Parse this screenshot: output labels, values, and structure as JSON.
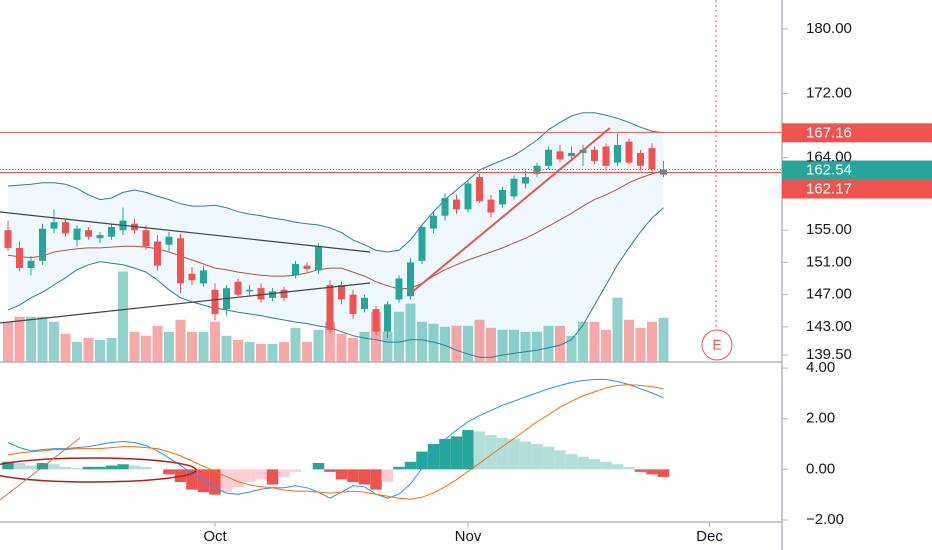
{
  "chart_data": [
    {
      "type": "candlestick",
      "categories": [
        null,
        null,
        null,
        null,
        null,
        null,
        null,
        null,
        null,
        null,
        null,
        null,
        null,
        null,
        null,
        null,
        null,
        null,
        "Oct",
        null,
        null,
        null,
        null,
        null,
        null,
        null,
        null,
        null,
        null,
        null,
        null,
        null,
        null,
        null,
        null,
        null,
        null,
        null,
        null,
        null,
        "Nov",
        null,
        null,
        null,
        null,
        null,
        null,
        null,
        null,
        null,
        null,
        null,
        null,
        null,
        null,
        null,
        null,
        null,
        null,
        null,
        null,
        "Dec"
      ],
      "open": [
        155.0,
        152.8,
        150.3,
        151.2,
        155.2,
        156.0,
        153.8,
        155.0,
        154.0,
        154.2,
        155.0,
        155.8,
        155.0,
        153.6,
        153.2,
        154.0,
        149.6,
        148.4,
        147.6,
        145.2,
        148.6,
        147.4,
        147.8,
        146.6,
        147.6,
        149.4,
        150.6,
        150.0,
        148.2,
        148.2,
        147.0,
        145.2,
        145.2,
        142.4,
        146.4,
        146.8,
        151.2,
        155.2,
        156.8,
        158.8,
        157.6,
        161.6,
        158.8,
        158.2,
        159.2,
        160.8,
        162.0,
        163.0,
        164.8,
        164.2,
        164.6,
        165.0,
        165.4,
        163.4,
        166.0,
        164.6,
        165.2,
        161.9,
        null,
        null,
        null,
        null
      ],
      "high": [
        156.2,
        153.6,
        151.8,
        155.8,
        157.6,
        156.4,
        155.6,
        155.4,
        154.8,
        155.8,
        157.8,
        156.4,
        155.6,
        154.4,
        154.8,
        154.6,
        150.4,
        150.6,
        148.4,
        148.2,
        149.0,
        148.2,
        148.4,
        147.8,
        148.0,
        151.2,
        151.0,
        153.4,
        148.8,
        148.6,
        147.6,
        147.0,
        145.6,
        146.2,
        149.4,
        151.6,
        155.8,
        157.2,
        159.6,
        159.4,
        161.2,
        162.0,
        159.4,
        160.4,
        161.8,
        162.4,
        163.4,
        165.4,
        165.6,
        165.4,
        165.6,
        165.4,
        165.8,
        167.0,
        166.4,
        165.0,
        165.8,
        163.6,
        null,
        null,
        null,
        null
      ],
      "low": [
        152.4,
        149.9,
        149.4,
        150.7,
        154.6,
        154.2,
        153.0,
        153.8,
        153.4,
        153.8,
        154.4,
        154.6,
        152.6,
        150.0,
        152.4,
        147.2,
        148.2,
        148.0,
        143.8,
        144.4,
        146.8,
        146.8,
        146.0,
        146.2,
        146.2,
        149.0,
        149.8,
        149.6,
        142.2,
        145.8,
        144.0,
        144.8,
        142.0,
        141.6,
        146.0,
        146.4,
        150.8,
        154.6,
        156.2,
        157.0,
        157.2,
        158.4,
        156.6,
        157.8,
        158.8,
        160.2,
        161.6,
        162.6,
        163.4,
        163.6,
        163.0,
        163.2,
        162.4,
        163.0,
        163.2,
        162.4,
        162.2,
        161.6,
        null,
        null,
        null,
        null
      ],
      "close": [
        152.8,
        150.3,
        151.2,
        155.2,
        156.0,
        154.6,
        155.2,
        154.2,
        154.4,
        155.4,
        156.2,
        155.0,
        153.0,
        150.6,
        154.2,
        148.4,
        148.8,
        150.0,
        144.6,
        147.8,
        147.0,
        147.6,
        146.4,
        147.4,
        146.6,
        150.8,
        150.2,
        153.0,
        142.6,
        146.4,
        144.6,
        146.6,
        142.4,
        145.8,
        149.0,
        151.0,
        155.4,
        156.8,
        159.0,
        157.6,
        160.8,
        158.6,
        157.2,
        160.0,
        161.4,
        161.6,
        163.0,
        165.0,
        163.8,
        164.6,
        165.0,
        163.6,
        163.0,
        165.6,
        163.4,
        163.0,
        162.6,
        162.54,
        null,
        null,
        null,
        null
      ],
      "up_color": "#26a69a",
      "down_color": "#ef5350",
      "ylim": [
        138.63,
        183.6
      ],
      "yticks": [
        {
          "value": 180,
          "label": "180.00"
        },
        {
          "value": 172,
          "label": "172.00"
        },
        {
          "value": 164,
          "label": "164.00"
        },
        {
          "value": 155,
          "label": "155.00"
        },
        {
          "value": 151,
          "label": "151.00"
        },
        {
          "value": 147,
          "label": "147.00"
        },
        {
          "value": 143,
          "label": "143.00"
        },
        {
          "value": 139.5,
          "label": "139.50"
        }
      ],
      "volume": {
        "ylim": [
          0,
          360
        ],
        "up_color": "rgba(38,166,154,0.5)",
        "down_color": "rgba(239,83,80,0.5)",
        "values": [
          40,
          45,
          45,
          45,
          40,
          28,
          20,
          24,
          22,
          24,
          90,
          30,
          26,
          36,
          30,
          42,
          30,
          30,
          40,
          26,
          22,
          20,
          18,
          18,
          20,
          34,
          20,
          32,
          40,
          28,
          24,
          30,
          50,
          30,
          50,
          58,
          40,
          38,
          35,
          36,
          36,
          42,
          34,
          32,
          32,
          30,
          30,
          36,
          36,
          26,
          40,
          40,
          32,
          64,
          42,
          34,
          40,
          44,
          null,
          null,
          null,
          null
        ]
      },
      "band_fill": "rgba(33,150,243,0.07)",
      "series": [
        {
          "color": "#2a7f9a",
          "values": [
            160.5,
            160.6,
            160.7,
            160.9,
            160.9,
            160.7,
            160.2,
            159.4,
            158.8,
            159.0,
            159.7,
            160.0,
            159.7,
            159.2,
            158.8,
            158.3,
            158.0,
            158.0,
            158.1,
            157.8,
            157.3,
            157.0,
            156.8,
            156.5,
            156.3,
            156.0,
            155.8,
            155.65,
            155.3,
            154.7,
            153.8,
            153.2,
            152.5,
            152.3,
            152.5,
            153.8,
            155.65,
            157.3,
            158.8,
            160.0,
            161.2,
            162.5,
            163.1,
            163.7,
            164.3,
            165.2,
            166.2,
            167.5,
            168.4,
            169.2,
            169.6,
            169.6,
            169.3,
            168.9,
            168.4,
            167.8,
            167.3,
            167.1,
            null,
            null,
            null,
            null
          ]
        },
        {
          "color": "#b5543e",
          "values": [
            151.9,
            151.7,
            151.6,
            151.8,
            152.3,
            152.5,
            152.7,
            152.8,
            152.8,
            152.9,
            153.0,
            153.0,
            152.9,
            152.7,
            152.3,
            151.8,
            151.3,
            150.8,
            150.3,
            150.1,
            149.8,
            149.6,
            149.4,
            149.3,
            149.3,
            149.4,
            149.7,
            150.1,
            150.3,
            150.3,
            149.8,
            149.3,
            148.6,
            148.1,
            147.7,
            147.8,
            148.4,
            149.3,
            150.1,
            150.7,
            151.3,
            151.8,
            152.3,
            152.8,
            153.4,
            154.0,
            154.7,
            155.5,
            156.3,
            157.1,
            158.0,
            158.8,
            159.4,
            160.1,
            160.9,
            161.5,
            162.0,
            162.4,
            null,
            null,
            null,
            null
          ]
        },
        {
          "color": "#2a7f9a",
          "values": [
            145.1,
            145.7,
            146.6,
            147.3,
            148.2,
            149.1,
            150.1,
            150.7,
            151.1,
            150.9,
            150.7,
            150.3,
            149.8,
            148.8,
            147.6,
            146.6,
            146.1,
            145.7,
            145.3,
            145.1,
            144.8,
            144.6,
            144.4,
            144.1,
            143.85,
            143.6,
            143.4,
            143.1,
            142.9,
            142.4,
            141.9,
            141.6,
            141.4,
            141.1,
            141.1,
            141.4,
            141.4,
            141.1,
            140.7,
            140.1,
            139.6,
            139.2,
            139.2,
            139.5,
            139.7,
            139.9,
            140.1,
            140.4,
            140.7,
            141.4,
            143.2,
            145.7,
            148.2,
            150.7,
            152.8,
            154.8,
            156.5,
            157.8,
            null,
            null,
            null,
            null
          ]
        }
      ],
      "price_lines": [
        {
          "value": 167.16,
          "color": "#ef5350"
        },
        {
          "value": 162.54,
          "color": "#26a69a"
        },
        {
          "value": 162.17,
          "color": "#ef5350"
        }
      ],
      "marker": "E"
    },
    {
      "type": "macd",
      "ylim": [
        -2.08,
        4.24
      ],
      "yticks": [
        {
          "value": 4,
          "label": "4.00"
        },
        {
          "value": 2,
          "label": "2.00"
        },
        {
          "value": 0,
          "label": "0.00"
        },
        {
          "value": -2,
          "label": "−2.00"
        }
      ],
      "histogram": {
        "rise_pos": "#26a69a",
        "fall_pos": "#b2dfdb",
        "fall_neg": "#ef5350",
        "rise_neg": "#ffcdd2",
        "values": [
          0.3,
          0.25,
          0.15,
          0.25,
          0.2,
          0.1,
          0.05,
          0.1,
          0.1,
          0.15,
          0.2,
          0.15,
          0.1,
          0.0,
          -0.2,
          -0.5,
          -0.8,
          -0.9,
          -1.0,
          -0.9,
          -0.7,
          -0.5,
          -0.4,
          -0.6,
          -0.3,
          -0.1,
          0.0,
          0.25,
          -0.1,
          -0.4,
          -0.5,
          -0.6,
          -0.8,
          -0.5,
          0.1,
          0.3,
          0.7,
          1.0,
          1.2,
          1.3,
          1.55,
          1.5,
          1.35,
          1.25,
          1.2,
          1.1,
          1.0,
          0.9,
          0.75,
          0.6,
          0.5,
          0.4,
          0.3,
          0.2,
          0.1,
          -0.1,
          -0.2,
          -0.3,
          null,
          null,
          null,
          null
        ]
      },
      "series": [
        {
          "color": "#2196f3",
          "values": [
            1.06,
            0.86,
            0.73,
            0.78,
            0.82,
            0.82,
            0.86,
            0.9,
            0.98,
            1.06,
            1.1,
            1.06,
            0.94,
            0.73,
            0.45,
            0.16,
            -0.16,
            -0.41,
            -0.73,
            -0.94,
            -0.98,
            -0.9,
            -0.78,
            -0.73,
            -0.73,
            -0.65,
            -0.73,
            -0.9,
            -1.14,
            -0.9,
            -0.65,
            -0.69,
            -0.98,
            -1.14,
            -0.98,
            -0.57,
            0.04,
            0.65,
            1.18,
            1.55,
            1.88,
            2.12,
            2.33,
            2.53,
            2.69,
            2.86,
            3.02,
            3.18,
            3.31,
            3.43,
            3.51,
            3.55,
            3.55,
            3.47,
            3.35,
            3.18,
            3.02,
            2.82,
            null,
            null,
            null,
            null
          ]
        },
        {
          "color": "#ff6d00",
          "values": [
            0.57,
            0.65,
            0.69,
            0.73,
            0.78,
            0.78,
            0.82,
            0.82,
            0.82,
            0.86,
            0.9,
            0.9,
            0.86,
            0.82,
            0.69,
            0.53,
            0.33,
            0.12,
            -0.08,
            -0.29,
            -0.49,
            -0.61,
            -0.69,
            -0.73,
            -0.82,
            -0.86,
            -0.86,
            -0.9,
            -0.94,
            -0.9,
            -0.86,
            -0.9,
            -0.98,
            -1.06,
            -1.14,
            -1.18,
            -1.1,
            -0.94,
            -0.69,
            -0.41,
            -0.08,
            0.24,
            0.57,
            0.9,
            1.22,
            1.55,
            1.88,
            2.16,
            2.45,
            2.69,
            2.9,
            3.06,
            3.22,
            3.31,
            3.35,
            3.31,
            3.27,
            3.18,
            null,
            null,
            null,
            null
          ]
        }
      ]
    }
  ]
}
